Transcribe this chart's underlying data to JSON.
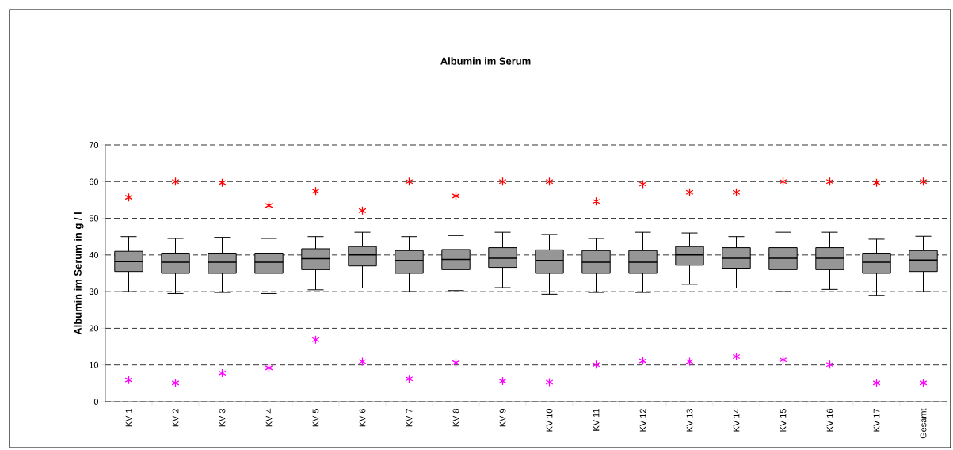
{
  "chart_data": {
    "type": "box",
    "title": "Albumin im Serum",
    "ylabel": "Albumin im Serum in g / l",
    "categories": [
      "KV 1",
      "KV 2",
      "KV 3",
      "KV 4",
      "KV 5",
      "KV 6",
      "KV 7",
      "KV 8",
      "KV 9",
      "KV 10",
      "KV 11",
      "KV 12",
      "KV 13",
      "KV 14",
      "KV 15",
      "KV 16",
      "KV 17",
      "Gesamt"
    ],
    "color": "#969696",
    "boxes": [
      {
        "low": 30,
        "q1": 35.5,
        "median": 38.2,
        "q3": 41,
        "high": 45
      },
      {
        "low": 29.5,
        "q1": 35,
        "median": 38,
        "q3": 40.5,
        "high": 44.5
      },
      {
        "low": 29.8,
        "q1": 35,
        "median": 38,
        "q3": 40.5,
        "high": 44.8
      },
      {
        "low": 29.5,
        "q1": 35,
        "median": 38,
        "q3": 40.5,
        "high": 44.5
      },
      {
        "low": 30.5,
        "q1": 36,
        "median": 39,
        "q3": 41.7,
        "high": 45
      },
      {
        "low": 31,
        "q1": 37,
        "median": 40,
        "q3": 42.3,
        "high": 46.2
      },
      {
        "low": 30,
        "q1": 35,
        "median": 38.5,
        "q3": 41.2,
        "high": 45
      },
      {
        "low": 30.3,
        "q1": 36,
        "median": 38.8,
        "q3": 41.5,
        "high": 45.3
      },
      {
        "low": 31.1,
        "q1": 36.6,
        "median": 39.1,
        "q3": 42,
        "high": 46.2
      },
      {
        "low": 29.3,
        "q1": 35,
        "median": 38.5,
        "q3": 41.4,
        "high": 45.6
      },
      {
        "low": 29.8,
        "q1": 35,
        "median": 38,
        "q3": 41.2,
        "high": 44.5
      },
      {
        "low": 29.8,
        "q1": 35,
        "median": 38,
        "q3": 41.2,
        "high": 46.2
      },
      {
        "low": 32,
        "q1": 37.2,
        "median": 40,
        "q3": 42.3,
        "high": 46
      },
      {
        "low": 31,
        "q1": 36.4,
        "median": 39.1,
        "q3": 42,
        "high": 45
      },
      {
        "low": 30,
        "q1": 36,
        "median": 39.1,
        "q3": 42,
        "high": 46.2
      },
      {
        "low": 30.6,
        "q1": 36,
        "median": 39.1,
        "q3": 42,
        "high": 46.2
      },
      {
        "low": 29,
        "q1": 35,
        "median": 38,
        "q3": 40.5,
        "high": 44.3
      },
      {
        "low": 30,
        "q1": 35.5,
        "median": 38.6,
        "q3": 41.2,
        "high": 45.1
      }
    ],
    "series": [
      {
        "type": "scatter",
        "color": "#ff0000",
        "marker": "cross",
        "values": [
          55.7,
          60,
          59.7,
          53.5,
          57.4,
          52.1,
          60,
          56.1,
          60,
          60,
          54.6,
          59.3,
          57.1,
          57.1,
          60,
          60,
          59.7,
          60
        ]
      },
      {
        "type": "scatter",
        "color": "#ff00ff",
        "marker": "cross",
        "values": [
          5.9,
          5.1,
          7.8,
          9.2,
          16.9,
          10.9,
          6.2,
          10.6,
          5.6,
          5.3,
          10.1,
          11.1,
          10.9,
          12.3,
          11.4,
          10.1,
          5.1,
          5.1
        ]
      }
    ],
    "ylim": [
      0,
      70
    ],
    "yticks": [
      0,
      10,
      20,
      30,
      40,
      50,
      60,
      70
    ],
    "grid": "y"
  }
}
